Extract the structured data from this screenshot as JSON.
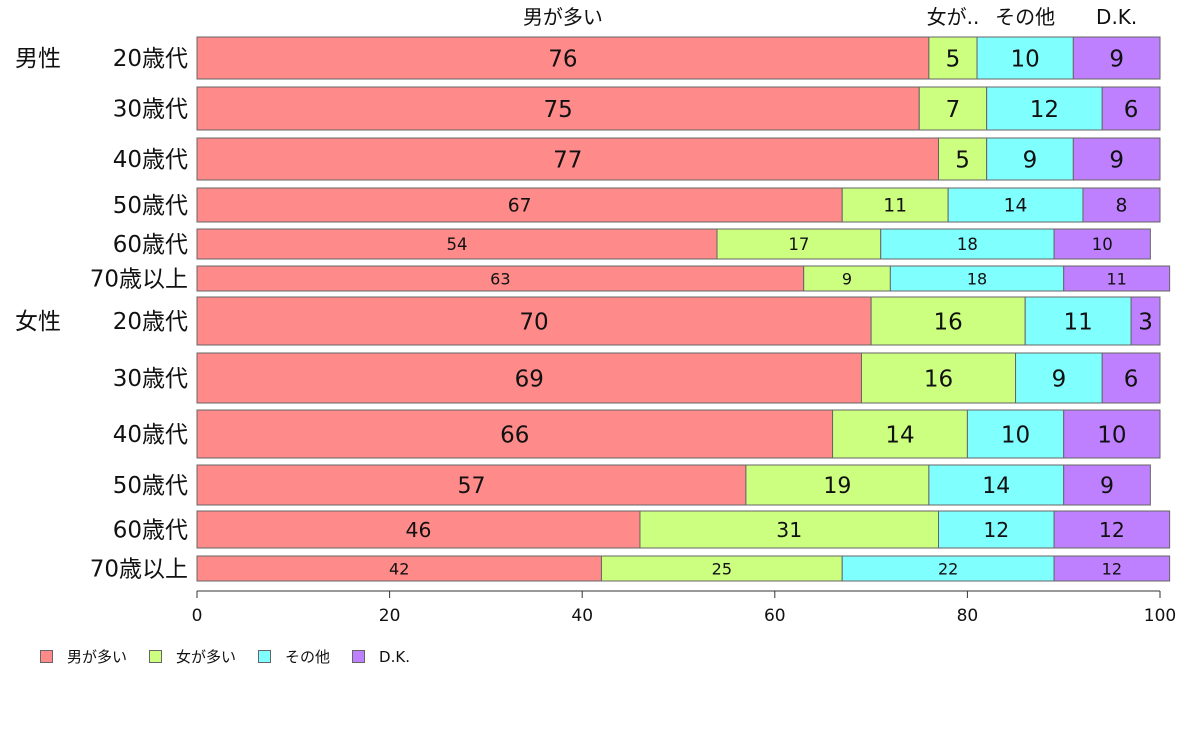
{
  "chart_data": {
    "type": "bar",
    "orientation": "horizontal",
    "stacked": true,
    "categories": [
      "男性 20歳代",
      "30歳代",
      "40歳代",
      "50歳代",
      "60歳代",
      "70歳以上",
      "女性 20歳代",
      "30歳代",
      "40歳代",
      "50歳代",
      "60歳代",
      "70歳以上"
    ],
    "category_groups": [
      {
        "label": "男性",
        "rows": [
          0,
          1,
          2,
          3,
          4,
          5
        ]
      },
      {
        "label": "女性",
        "rows": [
          6,
          7,
          8,
          9,
          10,
          11
        ]
      }
    ],
    "row_labels": [
      "20歳代",
      "30歳代",
      "40歳代",
      "50歳代",
      "60歳代",
      "70歳以上",
      "20歳代",
      "30歳代",
      "40歳代",
      "50歳代",
      "60歳代",
      "70歳以上"
    ],
    "series": [
      {
        "name": "男が多い",
        "color": "#ff8a8a",
        "values": [
          76,
          75,
          77,
          67,
          54,
          63,
          70,
          69,
          66,
          57,
          46,
          42
        ]
      },
      {
        "name": "女が多い",
        "color": "#ccff80",
        "values": [
          5,
          7,
          5,
          11,
          17,
          9,
          16,
          16,
          14,
          19,
          31,
          25
        ]
      },
      {
        "name": "その他",
        "color": "#80ffff",
        "values": [
          10,
          12,
          9,
          14,
          18,
          18,
          11,
          9,
          10,
          14,
          12,
          22
        ]
      },
      {
        "name": "D.K.",
        "color": "#bf80ff",
        "values": [
          9,
          6,
          9,
          8,
          10,
          11,
          3,
          6,
          10,
          9,
          12,
          12
        ]
      }
    ],
    "top_labels": [
      "男が多い",
      "女が..",
      "その他",
      "D.K."
    ],
    "xlim": [
      0,
      100
    ],
    "xticks": [
      0,
      20,
      40,
      60,
      80,
      100
    ],
    "grid": false,
    "legend": "bottom-left"
  }
}
